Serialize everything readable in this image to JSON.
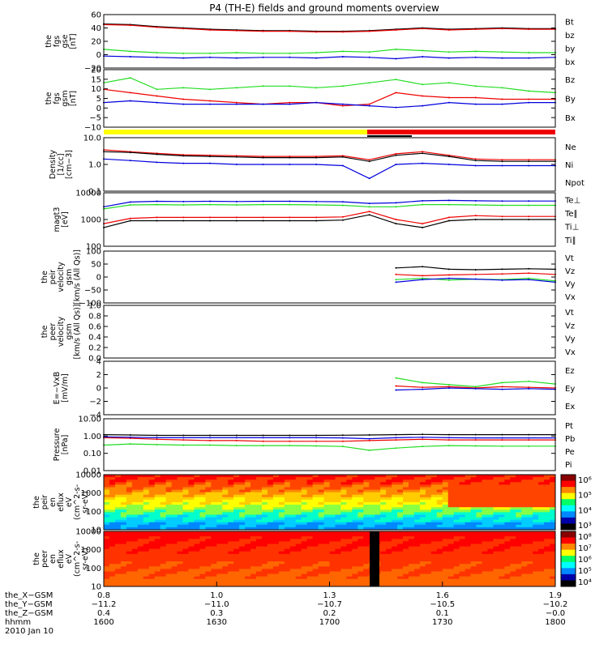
{
  "title": "P4 (TH-E) fields and ground moments overview",
  "colors": {
    "black": "#000000",
    "red": "#ee0000",
    "green": "#22dd22",
    "blue": "#0000dd",
    "yellow": "#ffff00",
    "cyan": "#00e5ff"
  },
  "chart_data": [
    {
      "type": "line",
      "panel": "fgs-gse",
      "ylabel": [
        "the",
        "fgs",
        "gse",
        "[nT]"
      ],
      "ylim": [
        -20,
        60
      ],
      "yticks": [
        "60",
        "40",
        "20",
        "0",
        "−20"
      ],
      "series": [
        {
          "name": "Bt",
          "color": "#000000",
          "values": [
            46,
            45,
            42,
            40,
            38,
            37,
            36,
            36,
            35,
            35,
            36,
            38,
            40,
            38,
            39,
            40,
            39,
            39
          ]
        },
        {
          "name": "bz",
          "color": "#ee0000",
          "values": [
            45,
            44,
            41,
            39,
            37,
            36,
            35,
            35,
            34,
            34,
            35,
            37,
            39,
            37,
            38,
            39,
            38,
            38
          ]
        },
        {
          "name": "by",
          "color": "#22dd22",
          "values": [
            8,
            5,
            3,
            2,
            2,
            3,
            2,
            2,
            3,
            5,
            4,
            8,
            6,
            4,
            5,
            4,
            3,
            3
          ]
        },
        {
          "name": "bx",
          "color": "#0000dd",
          "values": [
            -2,
            -3,
            -4,
            -5,
            -4,
            -5,
            -4,
            -4,
            -5,
            -3,
            -4,
            -6,
            -3,
            -5,
            -4,
            -5,
            -5,
            -4
          ]
        }
      ]
    },
    {
      "type": "line",
      "panel": "fgs-gsm",
      "ylabel": [
        "the",
        "fgs",
        "gsm",
        "[nT]"
      ],
      "ylim": [
        -15,
        20
      ],
      "yticks": [
        "20",
        "15",
        "10",
        "5",
        "0",
        "−5",
        "−10"
      ],
      "series": [
        {
          "name": "Bz",
          "color": "#ee0000",
          "values": [
            8,
            6,
            4,
            2,
            1,
            0,
            -1,
            0,
            0,
            -2,
            -1,
            6,
            4,
            3,
            3,
            2,
            2,
            2
          ]
        },
        {
          "name": "By",
          "color": "#22dd22",
          "values": [
            12,
            15,
            8,
            9,
            8,
            9,
            10,
            10,
            9,
            10,
            12,
            14,
            11,
            12,
            10,
            9,
            7,
            6
          ]
        },
        {
          "name": "Bx",
          "color": "#0000dd",
          "values": [
            0,
            1,
            0,
            -1,
            -1,
            -1,
            -1,
            -1,
            0,
            -1,
            -2,
            -3,
            -2,
            0,
            -1,
            -1,
            0,
            0
          ]
        }
      ]
    },
    {
      "type": "line",
      "panel": "density",
      "ylabel": [
        "Density",
        "[1/cc]",
        "[cm−3]"
      ],
      "log": true,
      "ylim": [
        0.1,
        10
      ],
      "yticks": [
        "10.0",
        "1.0",
        "0.1"
      ],
      "series": [
        {
          "name": "Ne",
          "color": "#ee0000",
          "values": [
            3.5,
            3,
            2.6,
            2.3,
            2.2,
            2.1,
            2,
            2,
            2,
            2.1,
            1.5,
            2.5,
            3,
            2.2,
            1.6,
            1.5,
            1.5,
            1.5
          ]
        },
        {
          "name": "Ni",
          "color": "#000000",
          "values": [
            3,
            2.8,
            2.4,
            2.1,
            2,
            1.9,
            1.8,
            1.8,
            1.8,
            1.9,
            1.3,
            2.2,
            2.6,
            2,
            1.4,
            1.3,
            1.3,
            1.3
          ]
        },
        {
          "name": "Npot",
          "color": "#0000dd",
          "values": [
            1.6,
            1.4,
            1.2,
            1.1,
            1.1,
            1,
            1,
            1,
            1,
            0.9,
            0.3,
            1,
            1.1,
            1,
            0.9,
            0.9,
            0.9,
            0.9
          ]
        }
      ]
    },
    {
      "type": "line",
      "panel": "temperature",
      "ylabel": [
        "magt3",
        "[eV]"
      ],
      "log": true,
      "ylim": [
        100,
        10000
      ],
      "yticks": [
        "10000",
        "1000",
        "100"
      ],
      "series": [
        {
          "name": "Te⊥",
          "color": "#ee0000",
          "values": [
            700,
            1100,
            1200,
            1200,
            1200,
            1200,
            1200,
            1200,
            1200,
            1250,
            2000,
            1000,
            700,
            1200,
            1400,
            1300,
            1300,
            1300
          ]
        },
        {
          "name": "Te∥",
          "color": "#000000",
          "values": [
            500,
            900,
            900,
            900,
            900,
            900,
            900,
            900,
            900,
            950,
            1500,
            700,
            500,
            900,
            1000,
            1000,
            1000,
            1000
          ]
        },
        {
          "name": "Ti⊥",
          "color": "#0000dd",
          "values": [
            3000,
            4500,
            4800,
            4700,
            4800,
            4700,
            4800,
            4800,
            4700,
            4600,
            4000,
            4200,
            5000,
            5200,
            5000,
            4900,
            4900,
            4900
          ]
        },
        {
          "name": "Ti∥",
          "color": "#22dd22",
          "values": [
            2500,
            3500,
            3600,
            3500,
            3600,
            3500,
            3600,
            3600,
            3500,
            3400,
            3000,
            3000,
            3600,
            3600,
            3500,
            3400,
            3400,
            3400
          ]
        }
      ]
    },
    {
      "type": "line",
      "panel": "peir-velocity",
      "ylabel": [
        "the",
        "peir",
        "velocity",
        "gsm",
        "[km/s (All Qs)]"
      ],
      "ylim": [
        -100,
        100
      ],
      "yticks": [
        "100",
        "50",
        "0",
        "−50",
        "−100"
      ],
      "series": [
        {
          "name": "Vt",
          "color": "#000000",
          "values": [
            null,
            null,
            null,
            null,
            null,
            null,
            null,
            null,
            null,
            null,
            null,
            35,
            40,
            30,
            28,
            30,
            32,
            30
          ]
        },
        {
          "name": "Vz",
          "color": "#ee0000",
          "values": [
            null,
            null,
            null,
            null,
            null,
            null,
            null,
            null,
            null,
            null,
            null,
            10,
            5,
            8,
            10,
            12,
            15,
            10
          ]
        },
        {
          "name": "Vy",
          "color": "#22dd22",
          "values": [
            null,
            null,
            null,
            null,
            null,
            null,
            null,
            null,
            null,
            null,
            null,
            -10,
            -5,
            -12,
            -8,
            -10,
            -5,
            -15
          ]
        },
        {
          "name": "Vx",
          "color": "#0000dd",
          "values": [
            null,
            null,
            null,
            null,
            null,
            null,
            null,
            null,
            null,
            null,
            null,
            -20,
            -10,
            -5,
            -8,
            -12,
            -10,
            -20
          ]
        }
      ]
    },
    {
      "type": "line",
      "panel": "peer-velocity",
      "ylabel": [
        "the",
        "peer",
        "velocity",
        "gsm",
        "[km/s (All Qs)]"
      ],
      "ylim": [
        0,
        1
      ],
      "yticks": [
        "1.0",
        "0.8",
        "0.6",
        "0.4",
        "0.2",
        "0.0"
      ],
      "series": [
        {
          "name": "Vt",
          "color": "#000000",
          "values": []
        },
        {
          "name": "Vz",
          "color": "#ee0000",
          "values": []
        },
        {
          "name": "Vy",
          "color": "#22dd22",
          "values": []
        },
        {
          "name": "Vx",
          "color": "#0000dd",
          "values": []
        }
      ]
    },
    {
      "type": "line",
      "panel": "efield",
      "ylabel": [
        "E=−VxB",
        "[mV/m]"
      ],
      "ylim": [
        -4,
        4
      ],
      "yticks": [
        "4",
        "2",
        "0",
        "−2",
        "−4"
      ],
      "series": [
        {
          "name": "Ez",
          "color": "#ee0000",
          "values": [
            null,
            null,
            null,
            null,
            null,
            null,
            null,
            null,
            null,
            null,
            null,
            0.3,
            0.1,
            0.2,
            0,
            0.2,
            0.1,
            0
          ]
        },
        {
          "name": "Ey",
          "color": "#22dd22",
          "values": [
            null,
            null,
            null,
            null,
            null,
            null,
            null,
            null,
            null,
            null,
            null,
            1.5,
            0.8,
            0.5,
            0.2,
            0.8,
            1,
            0.6
          ]
        },
        {
          "name": "Ex",
          "color": "#0000dd",
          "values": [
            null,
            null,
            null,
            null,
            null,
            null,
            null,
            null,
            null,
            null,
            null,
            -0.3,
            -0.2,
            0,
            -0.1,
            -0.2,
            -0.1,
            -0.2
          ]
        }
      ]
    },
    {
      "type": "line",
      "panel": "pressure",
      "ylabel": [
        "Pressure",
        "[nPa]"
      ],
      "log": true,
      "ylim": [
        0.01,
        10
      ],
      "yticks": [
        "10.00",
        "1.00",
        "0.10",
        "0.01"
      ],
      "series": [
        {
          "name": "Pt",
          "color": "#000000",
          "values": [
            1.2,
            1.15,
            1.1,
            1.1,
            1.1,
            1.1,
            1.1,
            1.1,
            1.1,
            1.12,
            1.15,
            1.2,
            1.25,
            1.2,
            1.2,
            1.2,
            1.2,
            1.2
          ]
        },
        {
          "name": "Pb",
          "color": "#ee0000",
          "values": [
            0.8,
            0.75,
            0.65,
            0.6,
            0.55,
            0.55,
            0.5,
            0.5,
            0.5,
            0.5,
            0.55,
            0.6,
            0.65,
            0.6,
            0.6,
            0.6,
            0.6,
            0.6
          ]
        },
        {
          "name": "Pe",
          "color": "#22dd22",
          "values": [
            0.3,
            0.35,
            0.32,
            0.3,
            0.3,
            0.28,
            0.28,
            0.28,
            0.27,
            0.25,
            0.15,
            0.2,
            0.25,
            0.28,
            0.27,
            0.26,
            0.26,
            0.26
          ]
        },
        {
          "name": "Pi",
          "color": "#0000dd",
          "values": [
            0.9,
            0.85,
            0.8,
            0.8,
            0.8,
            0.8,
            0.8,
            0.8,
            0.8,
            0.78,
            0.7,
            0.8,
            0.85,
            0.8,
            0.78,
            0.78,
            0.78,
            0.78
          ]
        }
      ]
    },
    {
      "type": "heatmap",
      "panel": "peir-spectrogram",
      "ylabel": [
        "the",
        "peir",
        "en",
        "eflux",
        "eV",
        "(cm^2-s-",
        "sr-eV)"
      ],
      "yticks": [
        "10000",
        "1000",
        "100",
        "10"
      ],
      "colorbar_ticks": [
        "10⁶",
        "10⁵",
        "10⁴",
        "10³"
      ]
    },
    {
      "type": "heatmap",
      "panel": "peer-spectrogram",
      "ylabel": [
        "the",
        "peer",
        "en",
        "eflux",
        "eV",
        "(cm^2-s-",
        "sr-eV)"
      ],
      "yticks": [
        "10000",
        "1000",
        "100",
        "10"
      ],
      "colorbar_ticks": [
        "10⁸",
        "10⁷",
        "10⁶",
        "10⁵",
        "10⁴"
      ]
    }
  ],
  "xaxis": {
    "row_labels": [
      "the_X−GSM",
      "the_Y−GSM",
      "the_Z−GSM",
      "hhmm",
      "2010 Jan 10"
    ],
    "columns": [
      {
        "x": "0.8",
        "y": "−11.2",
        "z": "0.4",
        "hhmm": "1600"
      },
      {
        "x": "1.0",
        "y": "−11.0",
        "z": "0.3",
        "hhmm": "1630"
      },
      {
        "x": "1.3",
        "y": "−10.7",
        "z": "0.2",
        "hhmm": "1700"
      },
      {
        "x": "1.6",
        "y": "−10.5",
        "z": "0.1",
        "hhmm": "1730"
      },
      {
        "x": "1.9",
        "y": "−10.2",
        "z": "−0.0",
        "hhmm": "1800"
      }
    ]
  }
}
